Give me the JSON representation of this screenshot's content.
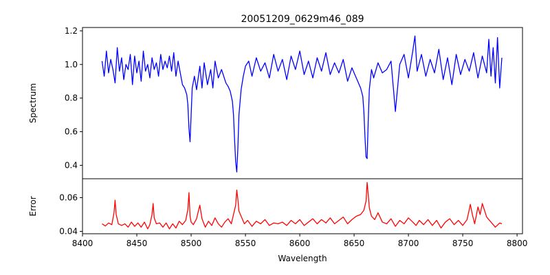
{
  "chart_data": [
    {
      "type": "line",
      "title": "20051209_0629m46_089",
      "xlabel": "",
      "ylabel": "Spectrum",
      "xlim": [
        8400,
        8805
      ],
      "ylim": [
        0.32,
        1.22
      ],
      "y_ticks": [
        0.4,
        0.6,
        0.8,
        1.0,
        1.2
      ],
      "y_tick_labels": [
        "0.4",
        "0.6",
        "0.8",
        "1.0",
        "1.2"
      ],
      "grid": false,
      "series": [
        {
          "color": "#0000ff",
          "x": [
            8418,
            8420,
            8422,
            8424,
            8426,
            8428,
            8430,
            8432,
            8434,
            8436,
            8438,
            8440,
            8442,
            8444,
            8446,
            8448,
            8450,
            8452,
            8454,
            8456,
            8458,
            8460,
            8462,
            8464,
            8466,
            8468,
            8470,
            8472,
            8474,
            8476,
            8478,
            8480,
            8482,
            8484,
            8486,
            8488,
            8490,
            8492,
            8494,
            8496,
            8497,
            8498,
            8499,
            8500,
            8501,
            8503,
            8505,
            8508,
            8510,
            8512,
            8515,
            8518,
            8520,
            8522,
            8525,
            8528,
            8530,
            8532,
            8534,
            8536,
            8538,
            8539,
            8540,
            8541,
            8542,
            8543,
            8544,
            8546,
            8548,
            8550,
            8553,
            8556,
            8560,
            8564,
            8568,
            8572,
            8576,
            8580,
            8584,
            8588,
            8592,
            8596,
            8600,
            8604,
            8608,
            8612,
            8616,
            8620,
            8624,
            8628,
            8632,
            8636,
            8640,
            8644,
            8648,
            8652,
            8656,
            8658,
            8659,
            8660,
            8661,
            8662,
            8663,
            8664,
            8666,
            8668,
            8672,
            8676,
            8680,
            8684,
            8688,
            8692,
            8696,
            8700,
            8704,
            8706,
            8708,
            8712,
            8716,
            8720,
            8724,
            8728,
            8732,
            8736,
            8740,
            8744,
            8748,
            8752,
            8756,
            8760,
            8764,
            8768,
            8772,
            8774,
            8776,
            8778,
            8780,
            8782,
            8784,
            8786
          ],
          "y": [
            1.02,
            0.93,
            1.08,
            0.95,
            1.03,
            0.97,
            0.89,
            1.1,
            0.96,
            1.04,
            0.91,
            1.0,
            0.97,
            1.06,
            0.88,
            1.05,
            0.95,
            1.02,
            0.9,
            1.08,
            0.96,
            1.0,
            0.92,
            1.04,
            0.97,
            1.01,
            0.93,
            1.06,
            0.97,
            1.02,
            0.98,
            1.05,
            0.96,
            1.07,
            0.93,
            1.02,
            0.95,
            0.88,
            0.86,
            0.82,
            0.76,
            0.62,
            0.54,
            0.7,
            0.86,
            0.93,
            0.85,
            0.99,
            0.86,
            1.01,
            0.88,
            0.97,
            0.86,
            1.02,
            0.92,
            0.97,
            0.93,
            0.89,
            0.87,
            0.84,
            0.78,
            0.7,
            0.55,
            0.42,
            0.36,
            0.5,
            0.7,
            0.85,
            0.93,
            0.99,
            1.02,
            0.93,
            1.04,
            0.96,
            1.01,
            0.92,
            1.06,
            0.96,
            1.03,
            0.91,
            1.05,
            0.97,
            1.08,
            0.94,
            1.02,
            0.92,
            1.04,
            0.96,
            1.07,
            0.94,
            1.01,
            0.95,
            1.03,
            0.9,
            0.98,
            0.92,
            0.86,
            0.81,
            0.72,
            0.57,
            0.45,
            0.44,
            0.66,
            0.85,
            0.97,
            0.92,
            1.01,
            0.95,
            0.97,
            1.02,
            0.72,
            1.0,
            1.06,
            0.92,
            1.08,
            1.17,
            0.96,
            1.06,
            0.93,
            1.03,
            0.95,
            1.09,
            0.91,
            1.04,
            0.88,
            1.06,
            0.94,
            1.03,
            0.96,
            1.07,
            0.92,
            1.05,
            0.95,
            1.15,
            0.93,
            1.1,
            0.89,
            1.16,
            0.86,
            1.04
          ]
        }
      ]
    },
    {
      "type": "line",
      "title": "",
      "xlabel": "Wavelength",
      "ylabel": "Error",
      "xlim": [
        8400,
        8805
      ],
      "ylim": [
        0.0386,
        0.0712
      ],
      "x_ticks": [
        8400,
        8450,
        8500,
        8550,
        8600,
        8650,
        8700,
        8750,
        8800
      ],
      "x_tick_labels": [
        "8400",
        "8450",
        "8500",
        "8550",
        "8600",
        "8650",
        "8700",
        "8750",
        "8800"
      ],
      "y_ticks": [
        0.04,
        0.06
      ],
      "y_tick_labels": [
        "0.04",
        "0.06"
      ],
      "grid": false,
      "series": [
        {
          "color": "#ff0000",
          "x": [
            8418,
            8421,
            8424,
            8427,
            8429,
            8430,
            8431,
            8433,
            8436,
            8439,
            8442,
            8445,
            8448,
            8451,
            8454,
            8457,
            8460,
            8462,
            8464,
            8465,
            8466,
            8468,
            8471,
            8474,
            8477,
            8480,
            8483,
            8486,
            8489,
            8492,
            8495,
            8497,
            8498,
            8499,
            8500,
            8502,
            8505,
            8507,
            8508,
            8510,
            8513,
            8516,
            8519,
            8522,
            8525,
            8528,
            8531,
            8534,
            8537,
            8539,
            8541,
            8542,
            8543,
            8544,
            8546,
            8549,
            8552,
            8556,
            8560,
            8564,
            8568,
            8572,
            8576,
            8580,
            8584,
            8588,
            8592,
            8596,
            8600,
            8604,
            8608,
            8612,
            8616,
            8620,
            8624,
            8628,
            8632,
            8636,
            8640,
            8644,
            8648,
            8652,
            8656,
            8659,
            8661,
            8662,
            8663,
            8664,
            8666,
            8669,
            8672,
            8676,
            8680,
            8684,
            8688,
            8692,
            8696,
            8700,
            8704,
            8707,
            8710,
            8714,
            8718,
            8722,
            8726,
            8730,
            8734,
            8738,
            8742,
            8746,
            8750,
            8754,
            8757,
            8759,
            8761,
            8764,
            8766,
            8768,
            8772,
            8776,
            8780,
            8784,
            8786
          ],
          "y": [
            0.0445,
            0.0432,
            0.045,
            0.044,
            0.051,
            0.0585,
            0.05,
            0.0445,
            0.0435,
            0.0445,
            0.0425,
            0.0455,
            0.043,
            0.045,
            0.0425,
            0.0455,
            0.0415,
            0.044,
            0.05,
            0.0565,
            0.048,
            0.0445,
            0.045,
            0.0425,
            0.045,
            0.0415,
            0.0445,
            0.042,
            0.046,
            0.044,
            0.0465,
            0.053,
            0.063,
            0.049,
            0.0455,
            0.044,
            0.0475,
            0.053,
            0.0555,
            0.0475,
            0.0425,
            0.046,
            0.0435,
            0.048,
            0.0445,
            0.0425,
            0.0455,
            0.0475,
            0.0445,
            0.05,
            0.0555,
            0.0645,
            0.059,
            0.052,
            0.049,
            0.0445,
            0.0465,
            0.043,
            0.046,
            0.0445,
            0.047,
            0.0435,
            0.045,
            0.0445,
            0.0455,
            0.0435,
            0.0465,
            0.0445,
            0.047,
            0.0435,
            0.0455,
            0.0475,
            0.0445,
            0.047,
            0.045,
            0.048,
            0.0445,
            0.0465,
            0.0485,
            0.0445,
            0.047,
            0.049,
            0.05,
            0.0525,
            0.058,
            0.069,
            0.062,
            0.054,
            0.049,
            0.047,
            0.051,
            0.0455,
            0.0445,
            0.0475,
            0.043,
            0.0465,
            0.0445,
            0.048,
            0.0455,
            0.0435,
            0.0465,
            0.044,
            0.047,
            0.0435,
            0.0465,
            0.042,
            0.0455,
            0.0475,
            0.044,
            0.0465,
            0.0435,
            0.047,
            0.056,
            0.0495,
            0.0445,
            0.0545,
            0.05,
            0.0565,
            0.0485,
            0.0455,
            0.0425,
            0.045,
            0.0445
          ]
        }
      ]
    }
  ]
}
